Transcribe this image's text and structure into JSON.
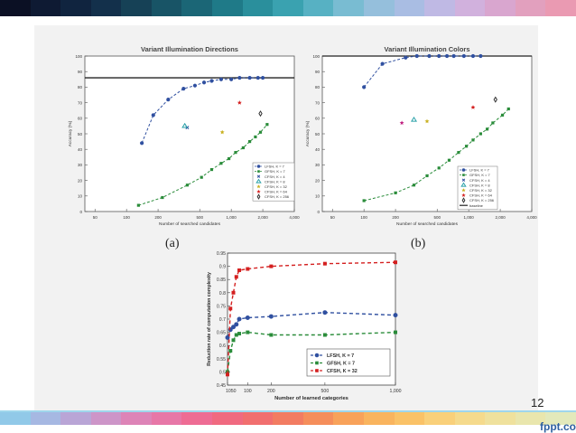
{
  "slide": {
    "page_number": "12",
    "brand": "fppt.com",
    "label_a": "(a)",
    "label_b": "(b)"
  },
  "colors": {
    "top_stripe": [
      "#0b1024",
      "#0e1a33",
      "#10243f",
      "#13304b",
      "#164156",
      "#185466",
      "#1b6676",
      "#1f7a88",
      "#2a8f9c",
      "#3aa2b0",
      "#57b1c3",
      "#79bcd2",
      "#95bfdc",
      "#a9bde3",
      "#bfb9e4",
      "#d1b1dd",
      "#d9a6cf",
      "#e2a0be",
      "#ea9ab2"
    ],
    "bottom_stripe": [
      "#91c9e8",
      "#a6b8e2",
      "#b9a5d6",
      "#cd95c8",
      "#dd84b7",
      "#e777a7",
      "#ee6c94",
      "#f06a80",
      "#f16f6f",
      "#f27c62",
      "#f58e5b",
      "#f8a25a",
      "#f9b45e",
      "#fac267",
      "#f9d07a",
      "#f5da8c",
      "#efe19d",
      "#e9e6ad",
      "#e3e9bb"
    ],
    "lfsh": "#3050a0",
    "gfsh": "#2a8c3a",
    "cfsh": "#d42020"
  },
  "chart_data": [
    {
      "type": "scatter",
      "title": "Variant Illumination Directions",
      "xlabel": "Number of searched candidates",
      "ylabel": "Accuracy (%)",
      "xticks": [
        "50",
        "100",
        "200",
        "500",
        "1,000",
        "2,000",
        "4,000"
      ],
      "xscale": "log",
      "xlim": [
        40,
        4000
      ],
      "yticks": [
        "0",
        "10",
        "20",
        "30",
        "40",
        "50",
        "60",
        "70",
        "80",
        "90",
        "100"
      ],
      "ylim": [
        0,
        100
      ],
      "baseline": 86,
      "series": [
        {
          "name": "LFSH, K = 7",
          "color": "#3050a0",
          "marker": "circle",
          "dashed": true,
          "x": [
            140,
            180,
            250,
            350,
            450,
            550,
            650,
            800,
            1000,
            1200,
            1500,
            1800,
            2000
          ],
          "y": [
            44,
            62,
            72,
            79,
            81,
            83,
            84,
            85,
            85,
            86,
            86,
            86,
            86
          ]
        },
        {
          "name": "GFSH, K = 7",
          "color": "#2a8c3a",
          "marker": "square",
          "dashed": true,
          "x": [
            130,
            220,
            380,
            520,
            650,
            800,
            950,
            1100,
            1300,
            1500,
            1700,
            1900,
            2200
          ],
          "y": [
            4,
            9,
            17,
            22,
            27,
            31,
            34,
            38,
            41,
            45,
            48,
            51,
            56
          ]
        },
        {
          "name": "CFSH, K = 4",
          "color": "#3050a0",
          "marker": "x",
          "dashed": false,
          "x": [
            380
          ],
          "y": [
            54
          ]
        },
        {
          "name": "CFSH, K = 8",
          "color": "#28a0a8",
          "marker": "triangle",
          "dashed": false,
          "x": [
            360
          ],
          "y": [
            55
          ]
        },
        {
          "name": "CFSH, K = 32",
          "color": "#c8b020",
          "marker": "star",
          "dashed": false,
          "x": [
            820
          ],
          "y": [
            51
          ]
        },
        {
          "name": "CFSH, K = 64",
          "color": "#d42020",
          "marker": "star",
          "dashed": false,
          "x": [
            1200
          ],
          "y": [
            70
          ]
        },
        {
          "name": "CFSH, K = 256",
          "color": "#333333",
          "marker": "diamond",
          "dashed": false,
          "x": [
            1900
          ],
          "y": [
            63
          ]
        }
      ]
    },
    {
      "type": "scatter",
      "title": "Variant Illumination Colors",
      "xlabel": "Number of searched candidates",
      "ylabel": "Accuracy (%)",
      "xticks": [
        "50",
        "100",
        "200",
        "500",
        "1,000",
        "2,000",
        "4,000"
      ],
      "xscale": "log",
      "xlim": [
        40,
        4000
      ],
      "yticks": [
        "0",
        "10",
        "20",
        "30",
        "40",
        "50",
        "60",
        "70",
        "80",
        "90",
        "100"
      ],
      "ylim": [
        0,
        100
      ],
      "baseline": 100,
      "series": [
        {
          "name": "LFSH, K = 7",
          "color": "#3050a0",
          "marker": "circle",
          "dashed": true,
          "x": [
            100,
            150,
            250,
            320,
            420,
            520,
            620,
            720,
            900,
            1100,
            1300
          ],
          "y": [
            80,
            95,
            99,
            100,
            100,
            100,
            100,
            100,
            100,
            100,
            100
          ]
        },
        {
          "name": "GFSH, K = 7",
          "color": "#2a8c3a",
          "marker": "square",
          "dashed": true,
          "x": [
            100,
            200,
            300,
            400,
            520,
            650,
            800,
            950,
            1100,
            1300,
            1500,
            1700,
            2100,
            2400
          ],
          "y": [
            7,
            12,
            17,
            23,
            28,
            33,
            38,
            42,
            46,
            50,
            53,
            57,
            62,
            66
          ]
        },
        {
          "name": "CFSH, K = 4",
          "color": "#3050a0",
          "marker": "x",
          "dashed": false,
          "x": [],
          "y": []
        },
        {
          "name": "CFSH, K = 8",
          "color": "#28a0a8",
          "marker": "triangle",
          "dashed": false,
          "x": [
            300
          ],
          "y": [
            59
          ]
        },
        {
          "name": "CFSH, K = 32",
          "color": "#c8b020",
          "marker": "star",
          "dashed": false,
          "x": [
            400
          ],
          "y": [
            58
          ]
        },
        {
          "name": "CFSH, K = 64",
          "color": "#d42020",
          "marker": "star",
          "dashed": false,
          "x": [
            1100
          ],
          "y": [
            67
          ]
        },
        {
          "name": "CFSH, K = 256",
          "color": "#333333",
          "marker": "diamond",
          "dashed": false,
          "x": [
            1800
          ],
          "y": [
            72
          ]
        },
        {
          "name": "",
          "color": "#c02080",
          "marker": "star",
          "dashed": false,
          "x": [
            230
          ],
          "y": [
            57
          ]
        }
      ],
      "legend_extra": "baseline"
    },
    {
      "type": "line",
      "title": "",
      "xlabel": "Number of learned categories",
      "ylabel": "Reduction rate of computation complexity",
      "xticks": [
        "1050",
        "100",
        "200",
        "500",
        "1,000"
      ],
      "yticks": [
        "0.45",
        "0.5",
        "0.55",
        "0.6",
        "0.65",
        "0.7",
        "0.75",
        "0.8",
        "0.85",
        "0.9",
        "0.95"
      ],
      "ylim": [
        0.45,
        0.95
      ],
      "series": [
        {
          "name": "LFSH, K = 7",
          "color": "#3050a0",
          "marker": "circle",
          "x": [
            10,
            20,
            30,
            40,
            50,
            100,
            200,
            500,
            1000
          ],
          "y": [
            0.63,
            0.66,
            0.67,
            0.68,
            0.7,
            0.705,
            0.71,
            0.725,
            0.715
          ]
        },
        {
          "name": "GFSH, K = 7",
          "color": "#2a8c3a",
          "marker": "square",
          "x": [
            10,
            20,
            30,
            40,
            50,
            100,
            200,
            500,
            1000
          ],
          "y": [
            0.5,
            0.58,
            0.62,
            0.64,
            0.645,
            0.65,
            0.64,
            0.64,
            0.65
          ]
        },
        {
          "name": "CFSH, K = 32",
          "color": "#d42020",
          "marker": "square",
          "x": [
            10,
            20,
            30,
            40,
            50,
            100,
            200,
            500,
            1000
          ],
          "y": [
            0.49,
            0.74,
            0.8,
            0.86,
            0.885,
            0.89,
            0.9,
            0.91,
            0.915
          ]
        }
      ]
    }
  ]
}
